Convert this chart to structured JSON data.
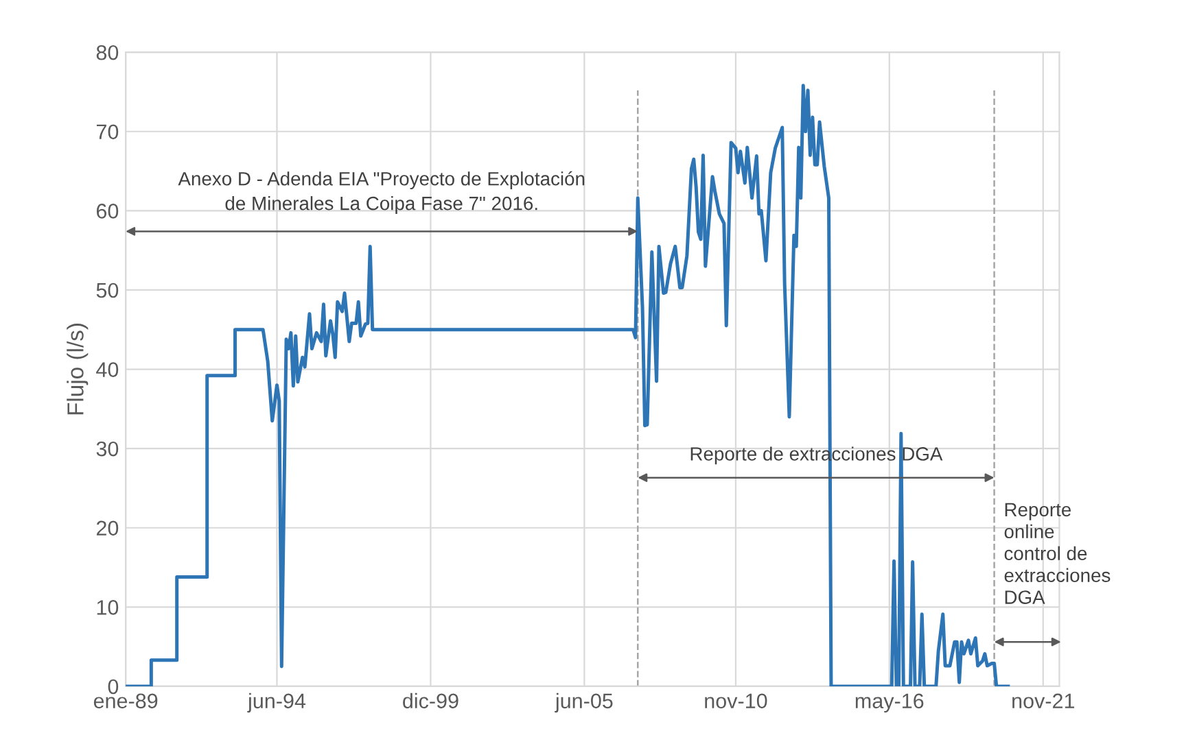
{
  "chart_data": {
    "type": "line",
    "ylabel": "Flujo (l/s)",
    "x": [
      "1989-01",
      "1989-12",
      "1989-12",
      "1990-11",
      "1990-11",
      "1991-12",
      "1991-12",
      "1992-12",
      "1992-12",
      "1993-12",
      "1994-02",
      "1994-04",
      "1994-06",
      "1994-07",
      "1994-08",
      "1994-10",
      "1994-11",
      "1994-12",
      "1995-01",
      "1995-02",
      "1995-03",
      "1995-05",
      "1995-06",
      "1995-08",
      "1995-09",
      "1995-11",
      "1996-01",
      "1996-02",
      "1996-03",
      "1996-05",
      "1996-06",
      "1996-07",
      "1996-08",
      "1996-10",
      "1996-11",
      "1997-01",
      "1997-02",
      "1997-04",
      "1997-05",
      "1997-06",
      "1997-08",
      "1997-09",
      "1997-10",
      "1997-11",
      "2007-03",
      "2007-04",
      "2007-05",
      "2007-07",
      "2007-08",
      "2007-09",
      "2007-11",
      "2008-01",
      "2008-02",
      "2008-04",
      "2008-05",
      "2008-07",
      "2008-09",
      "2008-11",
      "2008-12",
      "2009-02",
      "2009-04",
      "2009-05",
      "2009-06",
      "2009-07",
      "2009-08",
      "2009-09",
      "2009-10",
      "2010-01",
      "2010-02",
      "2010-04",
      "2010-06",
      "2010-07",
      "2010-09",
      "2010-11",
      "2010-12",
      "2011-01",
      "2011-03",
      "2011-04",
      "2011-06",
      "2011-08",
      "2011-09",
      "2011-10",
      "2011-12",
      "2012-02",
      "2012-04",
      "2012-07",
      "2012-08",
      "2012-10",
      "2012-12",
      "2013-01",
      "2013-02",
      "2013-03",
      "2013-04",
      "2013-05",
      "2013-06",
      "2013-07",
      "2013-08",
      "2013-09",
      "2013-10",
      "2013-11",
      "2014-01",
      "2014-03",
      "2014-04",
      "2016-06",
      "2016-07",
      "2016-08",
      "2016-09",
      "2016-10",
      "2016-11",
      "2017-02",
      "2017-03",
      "2017-04",
      "2017-06",
      "2017-07",
      "2017-08",
      "2018-01",
      "2018-02",
      "2018-04",
      "2018-05",
      "2018-07",
      "2018-09",
      "2018-10",
      "2018-11",
      "2018-12",
      "2019-01",
      "2019-03",
      "2019-04",
      "2019-06",
      "2019-07",
      "2019-09",
      "2019-10",
      "2019-11",
      "2020-01",
      "2020-02",
      "2020-03",
      "2020-08"
    ],
    "series": [
      {
        "color": "#2e75b6",
        "values": [
          0,
          0,
          3.3,
          3.3,
          13.8,
          13.8,
          39.2,
          39.2,
          45,
          45,
          41,
          33.5,
          38,
          36,
          2.5,
          43.8,
          42.6,
          44.6,
          37.9,
          44.2,
          38.4,
          41.5,
          40.3,
          47,
          42.6,
          44.6,
          43.5,
          48.2,
          41.7,
          46.1,
          44.4,
          41.5,
          48.5,
          47.3,
          49.6,
          43.5,
          45.8,
          45.8,
          48.5,
          44.2,
          45.7,
          45.8,
          55.5,
          45,
          45,
          44,
          61.6,
          47.8,
          32.9,
          33,
          54.8,
          38.5,
          55.5,
          49.6,
          49.7,
          53.3,
          55.5,
          50.3,
          50.3,
          54.3,
          65.3,
          66.5,
          63,
          57.3,
          56.4,
          67,
          53,
          64.3,
          62.5,
          59.6,
          58.4,
          45.5,
          68.6,
          67.9,
          64.8,
          67.5,
          63.5,
          68,
          61.6,
          66.9,
          59.6,
          60,
          53.7,
          64.8,
          67.9,
          70.5,
          50.8,
          34,
          56.9,
          55.5,
          68,
          61.6,
          75.8,
          70,
          75.2,
          67,
          71.8,
          65.8,
          65.8,
          71.2,
          65.6,
          61.6,
          0,
          0,
          15.8,
          0,
          0,
          31.9,
          0,
          0,
          15.7,
          0,
          0,
          9.1,
          0,
          0,
          4.5,
          9.1,
          2.6,
          2.6,
          5.6,
          5.6,
          0.5,
          5.6,
          4.1,
          5.8,
          4.1,
          6.1,
          2.6,
          3.2,
          4.1,
          2.6,
          2.9,
          2.9,
          0,
          0
        ]
      }
    ],
    "xlim": [
      "1989-01",
      "2022-06"
    ],
    "xticks": [
      {
        "value": "1989-01",
        "label": "ene-89"
      },
      {
        "value": "1994-06",
        "label": "jun-94"
      },
      {
        "value": "1999-12",
        "label": "dic-99"
      },
      {
        "value": "2005-06",
        "label": "jun-05"
      },
      {
        "value": "2010-11",
        "label": "nov-10"
      },
      {
        "value": "2016-05",
        "label": "may-16"
      },
      {
        "value": "2021-11",
        "label": "nov-21"
      }
    ],
    "ylim": [
      0,
      80
    ],
    "yticks": [
      0,
      10,
      20,
      30,
      40,
      50,
      60,
      70,
      80
    ],
    "grid": true,
    "marker": "none",
    "line_style": "solid",
    "ref_lines": [
      {
        "axis": "x",
        "value": "2007-05",
        "color": "#a6a6a6",
        "line_style": "dashed"
      },
      {
        "axis": "x",
        "value": "2020-02",
        "color": "#a6a6a6",
        "line_style": "dashed"
      }
    ],
    "annotations": [
      "Anexo D - Adenda EIA \"Proyecto de Explotación\nde Minerales La Coipa Fase 7\" 2016.",
      "Reporte de extracciones DGA",
      "Reporte\nonline\ncontrol de\nextracciones\nDGA"
    ]
  }
}
